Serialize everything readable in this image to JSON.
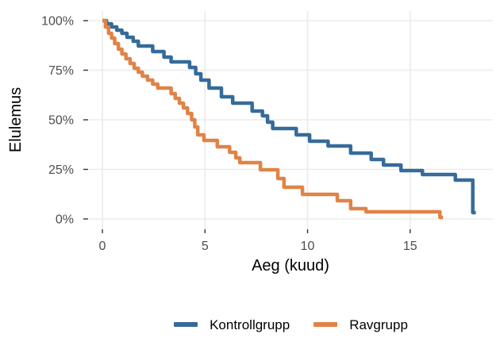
{
  "chart_data": {
    "type": "line",
    "subtype": "kaplan-meier-step-curve",
    "title": "",
    "xlabel": "Aeg (kuud)",
    "ylabel": "Elulemus",
    "x_ticks": [
      0,
      5,
      10,
      15
    ],
    "x_tick_labels": [
      "0",
      "5",
      "10",
      "15"
    ],
    "y_ticks": [
      0,
      25,
      50,
      75,
      100
    ],
    "y_tick_labels": [
      "0%",
      "25%",
      "50%",
      "75%",
      "100%"
    ],
    "xlim": [
      -0.658,
      19.03
    ],
    "ylim": [
      -5.2,
      104.8
    ],
    "grid": "major-only",
    "gridline_color": "#ebebeb",
    "tick_color": "#333333",
    "tick_label_color": "#4d4d4d",
    "axis_title_color": "#000000",
    "legend_position": "bottom",
    "line_width": 4.5,
    "series": [
      {
        "name": "Kontrollgrupp",
        "color": "#366b99",
        "end_x": 18.2,
        "points": [
          [
            0,
            100
          ],
          [
            0.2,
            98.4
          ],
          [
            0.45,
            96.8
          ],
          [
            0.7,
            95.2
          ],
          [
            0.95,
            93.6
          ],
          [
            1.2,
            91.6
          ],
          [
            1.5,
            89.6
          ],
          [
            1.75,
            87.2
          ],
          [
            2.45,
            84.4
          ],
          [
            3.0,
            81.6
          ],
          [
            3.35,
            79.2
          ],
          [
            4.25,
            76.4
          ],
          [
            4.55,
            73.2
          ],
          [
            4.8,
            70.0
          ],
          [
            5.2,
            66.0
          ],
          [
            5.8,
            61.6
          ],
          [
            6.35,
            58.4
          ],
          [
            7.3,
            54.4
          ],
          [
            7.8,
            52.0
          ],
          [
            8.05,
            48.8
          ],
          [
            8.3,
            45.6
          ],
          [
            9.45,
            42.4
          ],
          [
            10.1,
            39.2
          ],
          [
            11.0,
            36.8
          ],
          [
            12.1,
            33.2
          ],
          [
            13.1,
            30.0
          ],
          [
            13.7,
            27.2
          ],
          [
            14.55,
            24.4
          ],
          [
            15.6,
            22.4
          ],
          [
            17.2,
            19.6
          ],
          [
            18.05,
            3.2
          ]
        ]
      },
      {
        "name": "Ravgrupp",
        "color": "#e08347",
        "end_x": 16.6,
        "points": [
          [
            0,
            100
          ],
          [
            0.15,
            96.8
          ],
          [
            0.3,
            93.6
          ],
          [
            0.45,
            91.2
          ],
          [
            0.6,
            88.4
          ],
          [
            0.78,
            85.6
          ],
          [
            0.95,
            83.2
          ],
          [
            1.15,
            80.8
          ],
          [
            1.35,
            78.4
          ],
          [
            1.55,
            76.0
          ],
          [
            1.75,
            74.0
          ],
          [
            1.95,
            72.0
          ],
          [
            2.2,
            70.0
          ],
          [
            2.45,
            68.0
          ],
          [
            2.7,
            66.0
          ],
          [
            3.35,
            63.2
          ],
          [
            3.55,
            60.8
          ],
          [
            3.75,
            58.4
          ],
          [
            3.95,
            56.0
          ],
          [
            4.15,
            53.2
          ],
          [
            4.35,
            50.0
          ],
          [
            4.5,
            46.4
          ],
          [
            4.65,
            42.4
          ],
          [
            4.95,
            39.6
          ],
          [
            5.6,
            36.4
          ],
          [
            6.2,
            33.6
          ],
          [
            6.5,
            30.8
          ],
          [
            6.7,
            28.4
          ],
          [
            7.7,
            24.8
          ],
          [
            8.55,
            20.4
          ],
          [
            8.85,
            16.0
          ],
          [
            9.75,
            12.4
          ],
          [
            11.45,
            9.2
          ],
          [
            12.1,
            5.2
          ],
          [
            12.85,
            3.6
          ],
          [
            16.45,
            0.8
          ]
        ]
      }
    ]
  }
}
